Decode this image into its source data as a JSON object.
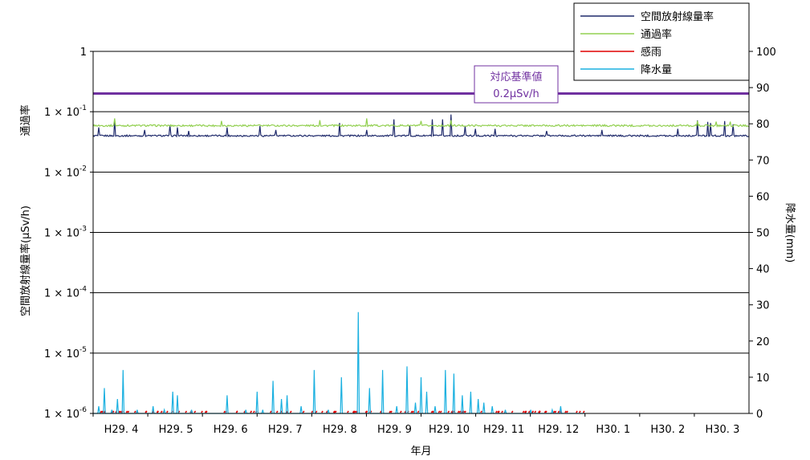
{
  "chart_data": {
    "type": "line",
    "title": "",
    "xlabel": "年月",
    "ylabel_left_top": "通過率",
    "ylabel_left": "空間放射線量率(μSv/h)",
    "ylabel_right": "降水量(mm)",
    "x_ticks": [
      "H29. 4",
      "H29. 5",
      "H29. 6",
      "H29. 7",
      "H29. 8",
      "H29. 9",
      "H29. 10",
      "H29. 11",
      "H29. 12",
      "H30. 1",
      "H30. 2",
      "H30. 3"
    ],
    "y_left": {
      "scale": "log",
      "ylim": [
        1e-06,
        1
      ],
      "ticks": [
        {
          "value": 1,
          "mantissa": "1",
          "exp": ""
        },
        {
          "value": 0.1,
          "mantissa": "1 × 10",
          "exp": "-1"
        },
        {
          "value": 0.01,
          "mantissa": "1 × 10",
          "exp": "-2"
        },
        {
          "value": 0.001,
          "mantissa": "1 × 10",
          "exp": "-3"
        },
        {
          "value": 0.0001,
          "mantissa": "1 × 10",
          "exp": "-4"
        },
        {
          "value": 1e-05,
          "mantissa": "1 × 10",
          "exp": "-5"
        },
        {
          "value": 1e-06,
          "mantissa": "1 × 10",
          "exp": "-6"
        }
      ]
    },
    "y_right": {
      "ylim": [
        0,
        100
      ],
      "ticks": [
        0,
        10,
        20,
        30,
        40,
        50,
        60,
        70,
        80,
        90,
        100
      ]
    },
    "grid": true,
    "legend_position": "top-right",
    "reference_line": {
      "value": 0.2,
      "color": "#7030a0",
      "label_line1": "対応基準値",
      "label_line2": "0.2μSv/h"
    },
    "series": [
      {
        "name": "空間放射線量率",
        "axis": "left",
        "color": "#1f2a6b",
        "baseline": 0.04,
        "spikes": [
          {
            "month": 0.1,
            "value": 0.055
          },
          {
            "month": 0.4,
            "value": 0.075
          },
          {
            "month": 0.95,
            "value": 0.05
          },
          {
            "month": 1.4,
            "value": 0.06
          },
          {
            "month": 1.55,
            "value": 0.055
          },
          {
            "month": 1.75,
            "value": 0.048
          },
          {
            "month": 2.45,
            "value": 0.055
          },
          {
            "month": 3.05,
            "value": 0.058
          },
          {
            "month": 3.35,
            "value": 0.05
          },
          {
            "month": 4.5,
            "value": 0.065
          },
          {
            "month": 5.0,
            "value": 0.05
          },
          {
            "month": 5.5,
            "value": 0.075
          },
          {
            "month": 5.8,
            "value": 0.058
          },
          {
            "month": 6.2,
            "value": 0.075
          },
          {
            "month": 6.4,
            "value": 0.075
          },
          {
            "month": 6.55,
            "value": 0.09
          },
          {
            "month": 6.8,
            "value": 0.058
          },
          {
            "month": 7.0,
            "value": 0.052
          },
          {
            "month": 7.35,
            "value": 0.052
          },
          {
            "month": 8.3,
            "value": 0.048
          },
          {
            "month": 9.3,
            "value": 0.05
          },
          {
            "month": 10.7,
            "value": 0.052
          },
          {
            "month": 11.05,
            "value": 0.072
          },
          {
            "month": 11.25,
            "value": 0.068
          },
          {
            "month": 11.3,
            "value": 0.065
          },
          {
            "month": 11.55,
            "value": 0.07
          },
          {
            "month": 11.7,
            "value": 0.062
          }
        ]
      },
      {
        "name": "通過率",
        "axis": "right",
        "color": "#92d050",
        "baseline": 79.5,
        "spikes": [
          {
            "month": 0.4,
            "value": 81.5
          },
          {
            "month": 2.35,
            "value": 80.8
          },
          {
            "month": 4.15,
            "value": 81.0
          },
          {
            "month": 5.0,
            "value": 81.5
          },
          {
            "month": 6.0,
            "value": 80.8
          },
          {
            "month": 6.55,
            "value": 81.0
          },
          {
            "month": 11.05,
            "value": 80.8
          },
          {
            "month": 11.4,
            "value": 80.6
          },
          {
            "month": 11.65,
            "value": 80.6
          }
        ]
      },
      {
        "name": "感雨",
        "axis": "right",
        "color": "#e00000",
        "baseline": 0,
        "spikes": []
      },
      {
        "name": "降水量",
        "axis": "right",
        "color": "#1ab0e0",
        "baseline": 0,
        "spikes": [
          {
            "month": 0.1,
            "value": 2
          },
          {
            "month": 0.2,
            "value": 7
          },
          {
            "month": 0.35,
            "value": 1
          },
          {
            "month": 0.45,
            "value": 4
          },
          {
            "month": 0.55,
            "value": 12
          },
          {
            "month": 0.8,
            "value": 1
          },
          {
            "month": 1.1,
            "value": 2
          },
          {
            "month": 1.3,
            "value": 1
          },
          {
            "month": 1.45,
            "value": 6
          },
          {
            "month": 1.55,
            "value": 5
          },
          {
            "month": 1.8,
            "value": 1
          },
          {
            "month": 2.45,
            "value": 5
          },
          {
            "month": 2.8,
            "value": 1
          },
          {
            "month": 3.0,
            "value": 6
          },
          {
            "month": 3.1,
            "value": 1
          },
          {
            "month": 3.3,
            "value": 9
          },
          {
            "month": 3.45,
            "value": 4
          },
          {
            "month": 3.55,
            "value": 5
          },
          {
            "month": 3.8,
            "value": 2
          },
          {
            "month": 4.05,
            "value": 12
          },
          {
            "month": 4.3,
            "value": 1
          },
          {
            "month": 4.55,
            "value": 10
          },
          {
            "month": 4.85,
            "value": 28
          },
          {
            "month": 5.05,
            "value": 7
          },
          {
            "month": 5.3,
            "value": 12
          },
          {
            "month": 5.55,
            "value": 2
          },
          {
            "month": 5.75,
            "value": 13
          },
          {
            "month": 5.9,
            "value": 3
          },
          {
            "month": 6.0,
            "value": 10
          },
          {
            "month": 6.1,
            "value": 6
          },
          {
            "month": 6.25,
            "value": 2
          },
          {
            "month": 6.45,
            "value": 12
          },
          {
            "month": 6.6,
            "value": 11
          },
          {
            "month": 6.75,
            "value": 5
          },
          {
            "month": 6.9,
            "value": 6
          },
          {
            "month": 7.05,
            "value": 4
          },
          {
            "month": 7.15,
            "value": 3
          },
          {
            "month": 7.3,
            "value": 2
          },
          {
            "month": 7.55,
            "value": 1
          },
          {
            "month": 8.0,
            "value": 1
          },
          {
            "month": 8.4,
            "value": 1
          },
          {
            "month": 8.55,
            "value": 2
          }
        ]
      }
    ]
  }
}
